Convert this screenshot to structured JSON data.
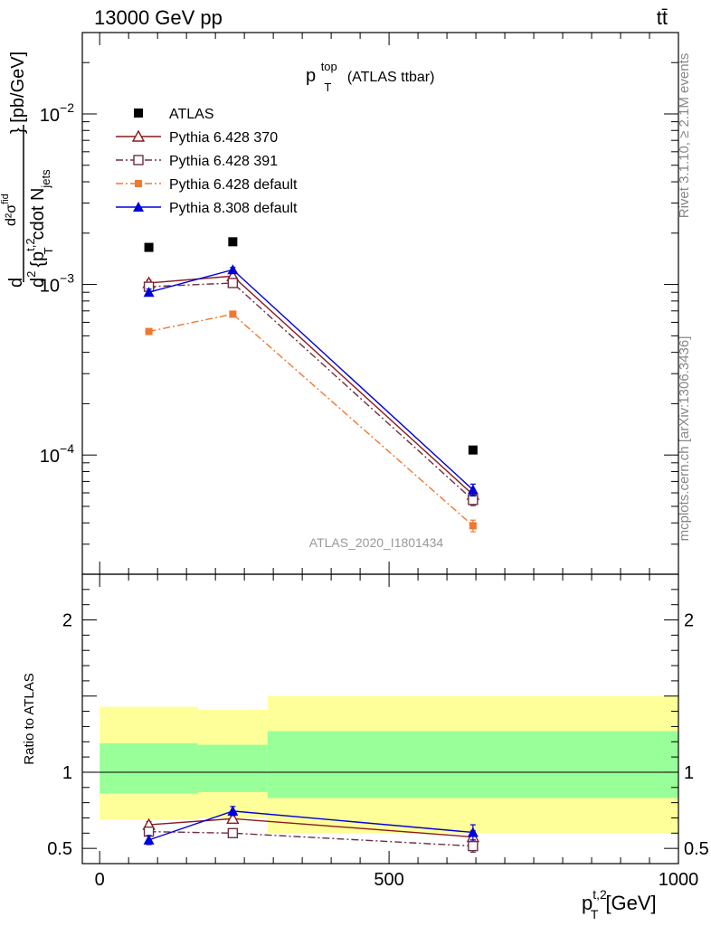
{
  "header": {
    "left": "13000 GeV pp",
    "right": "tt̄"
  },
  "side": {
    "rivet": "Rivet 3.1.10, ≥ 2.1M events",
    "mcplots": "mcplots.cern.ch [arXiv:1306.3436]"
  },
  "chart_data": [
    {
      "type": "scatter",
      "panel": "main",
      "title_main": "p",
      "title_sup": "top",
      "title_sub": "T",
      "title_rest": "(ATLAS ttbar)",
      "watermark": "ATLAS_2020_I1801434",
      "ylabel": "d²σ/d²{p_T^{t,2} cdot N_jets} [pb/GeV]",
      "ylabel_parts": {
        "d": "d",
        "num": "d²σ",
        "num_sup": "fid",
        "den_pre": "d",
        "den_sup": "2",
        "den_brace": "{p",
        "den_pt_sup": "t,2",
        "den_pt_sub": "T",
        "den_cdot": "cdot N",
        "den_jets_sub": "jets",
        "units": "} [pb/GeV]"
      },
      "yscale": "log",
      "ylim": [
        2e-05,
        0.03
      ],
      "xlim": [
        -30,
        1000
      ],
      "y_ticks": [
        {
          "value": 0.01,
          "base": "10",
          "exp": "−2"
        },
        {
          "value": 0.001,
          "base": "10",
          "exp": "−3"
        },
        {
          "value": 0.0001,
          "base": "10",
          "exp": "−4"
        }
      ],
      "x": [
        85,
        230,
        645
      ],
      "series": [
        {
          "name": "ATLAS",
          "color": "#000000",
          "marker": "square-filled",
          "line": "none",
          "y": [
            0.00165,
            0.00178,
            0.000107
          ]
        },
        {
          "name": "Pythia 6.428 370",
          "color": "#8b1a1a",
          "marker": "triangle-open",
          "line": "solid",
          "y": [
            0.00102,
            0.00112,
            5.85e-05
          ],
          "err": [
            4e-05,
            4e-05,
            4e-06
          ]
        },
        {
          "name": "Pythia 6.428 391",
          "color": "#6b3040",
          "marker": "square-open",
          "line": "dashdot",
          "y": [
            0.00097,
            0.00102,
            5.45e-05
          ],
          "err": [
            4e-05,
            4e-05,
            4e-06
          ]
        },
        {
          "name": "Pythia 6.428 default",
          "color": "#f07830",
          "marker": "square-filled-small",
          "line": "dashdot",
          "y": [
            0.00053,
            0.00067,
            3.85e-05
          ],
          "err": [
            2e-05,
            2e-05,
            3e-06
          ]
        },
        {
          "name": "Pythia 8.308 default",
          "color": "#0000dd",
          "marker": "triangle-filled",
          "line": "solid",
          "y": [
            0.0009,
            0.00122,
            6.25e-05
          ],
          "err": [
            4e-05,
            4e-05,
            5e-06
          ]
        }
      ]
    },
    {
      "type": "scatter",
      "panel": "ratio",
      "ylabel": "Ratio to ATLAS",
      "xlabel_main": "p",
      "xlabel_sup": "t,2",
      "xlabel_sub": "T",
      "xlabel_units": "[GeV]",
      "ylim": [
        0.4,
        2.3
      ],
      "xlim": [
        -30,
        1000
      ],
      "x_ticks": [
        {
          "value": 0,
          "label": "0"
        },
        {
          "value": 500,
          "label": "500"
        },
        {
          "value": 1000,
          "label": "1000"
        }
      ],
      "y_ticks": [
        {
          "value": 0.5,
          "label": "0.5"
        },
        {
          "value": 1,
          "label": "1"
        },
        {
          "value": 2,
          "label": "2"
        }
      ],
      "bands": [
        {
          "x0": 0,
          "x1": 170,
          "yellow": [
            0.69,
            1.43
          ],
          "green": [
            0.86,
            1.19
          ]
        },
        {
          "x0": 170,
          "x1": 290,
          "yellow": [
            0.7,
            1.41
          ],
          "green": [
            0.87,
            1.18
          ]
        },
        {
          "x0": 290,
          "x1": 1000,
          "yellow": [
            0.6,
            1.5
          ],
          "green": [
            0.83,
            1.27
          ]
        }
      ],
      "band_colors": {
        "yellow": "#ffff99",
        "green": "#99ff99"
      },
      "x": [
        85,
        230,
        645
      ],
      "series": [
        {
          "name": "Pythia 6.428 370",
          "color": "#8b1a1a",
          "marker": "triangle-open",
          "line": "solid",
          "y": [
            0.655,
            0.695,
            0.575
          ],
          "err": [
            0.02,
            0.02,
            0.04
          ]
        },
        {
          "name": "Pythia 6.428 391",
          "color": "#6b3040",
          "marker": "square-open",
          "line": "dashdot",
          "y": [
            0.61,
            0.6,
            0.515
          ],
          "err": [
            0.02,
            0.02,
            0.04
          ]
        },
        {
          "name": "Pythia 8.308 default",
          "color": "#0000dd",
          "marker": "triangle-filled",
          "line": "solid",
          "y": [
            0.555,
            0.745,
            0.605
          ],
          "err": [
            0.03,
            0.03,
            0.05
          ]
        }
      ]
    }
  ]
}
